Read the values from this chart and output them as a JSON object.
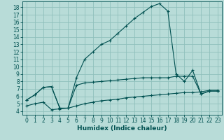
{
  "xlabel": "Humidex (Indice chaleur)",
  "bg_color": "#b8dcd8",
  "grid_color": "#90c0bc",
  "line_color": "#005050",
  "x_ticks": [
    0,
    1,
    2,
    3,
    4,
    5,
    6,
    7,
    8,
    9,
    10,
    11,
    12,
    13,
    14,
    15,
    16,
    17,
    18,
    19,
    20,
    21,
    22,
    23
  ],
  "y_ticks": [
    4,
    5,
    6,
    7,
    8,
    9,
    10,
    11,
    12,
    13,
    14,
    15,
    16,
    17,
    18
  ],
  "ylim": [
    3.5,
    18.8
  ],
  "xlim": [
    -0.5,
    23.5
  ],
  "series1_x": [
    0,
    1,
    2,
    3,
    4,
    5,
    6,
    7,
    8,
    9,
    10,
    11,
    12,
    13,
    14,
    15,
    16,
    17,
    18,
    19,
    20,
    21,
    22,
    23
  ],
  "series1_y": [
    5.5,
    6.2,
    7.2,
    7.3,
    4.4,
    4.4,
    8.5,
    11.0,
    12.0,
    13.0,
    13.5,
    14.5,
    15.5,
    16.5,
    17.3,
    18.1,
    18.5,
    17.5,
    9.0,
    8.0,
    9.5,
    6.3,
    6.7,
    6.7
  ],
  "series2_x": [
    0,
    1,
    2,
    3,
    4,
    5,
    6,
    7,
    8,
    9,
    10,
    11,
    12,
    13,
    14,
    15,
    16,
    17,
    18,
    19,
    20,
    21,
    22,
    23
  ],
  "series2_y": [
    5.5,
    6.2,
    7.2,
    7.3,
    4.4,
    4.4,
    7.5,
    7.8,
    7.9,
    8.0,
    8.1,
    8.2,
    8.3,
    8.4,
    8.5,
    8.5,
    8.5,
    8.5,
    8.7,
    8.7,
    8.7,
    6.3,
    6.7,
    6.7
  ],
  "series3_x": [
    0,
    1,
    2,
    3,
    4,
    5,
    6,
    7,
    8,
    9,
    10,
    11,
    12,
    13,
    14,
    15,
    16,
    17,
    18,
    19,
    20,
    21,
    22,
    23
  ],
  "series3_y": [
    4.7,
    5.0,
    5.2,
    4.2,
    4.3,
    4.4,
    4.7,
    5.0,
    5.2,
    5.4,
    5.5,
    5.6,
    5.8,
    5.9,
    6.0,
    6.1,
    6.2,
    6.3,
    6.4,
    6.5,
    6.5,
    6.6,
    6.8,
    6.8
  ],
  "tick_fontsize": 5.5,
  "xlabel_fontsize": 6.5
}
